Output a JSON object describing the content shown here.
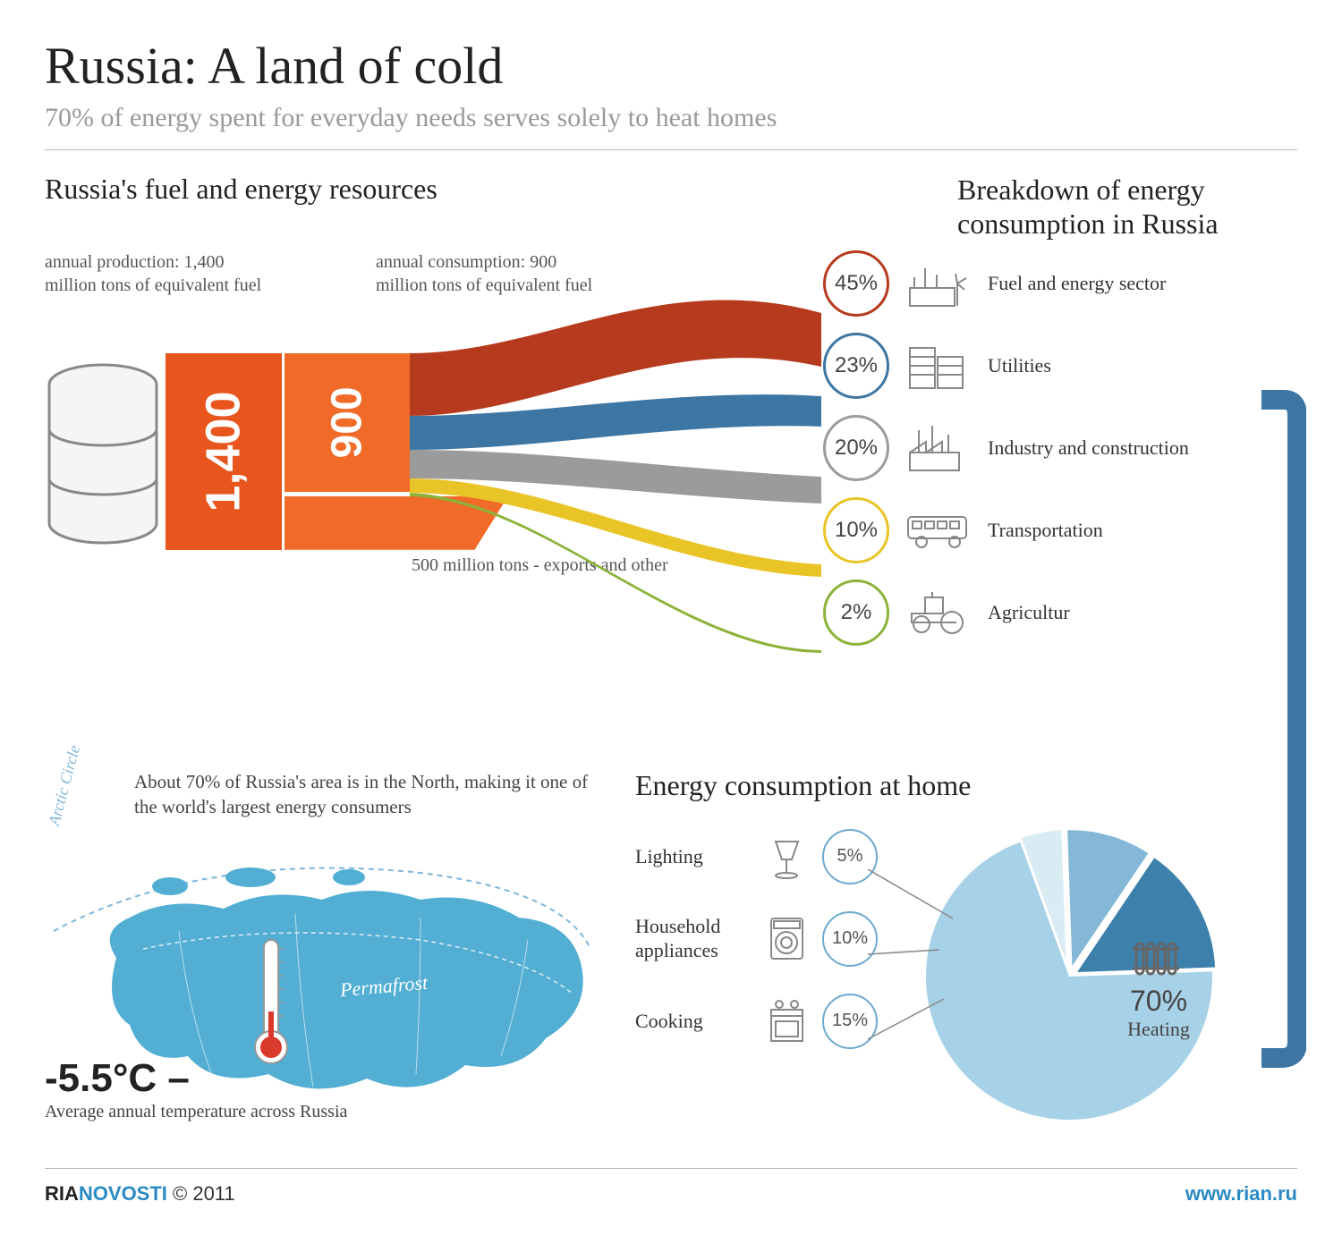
{
  "header": {
    "title": "Russia: A land of cold",
    "subtitle": "70% of energy spent for everyday needs serves solely to heat homes"
  },
  "resources": {
    "heading": "Russia's fuel and energy resources",
    "production_label": "annual production: 1,400 million tons of equivalent fuel",
    "consumption_label": "annual consumption: 900 million tons of equivalent fuel",
    "production_value": "1,400",
    "consumption_value": "900",
    "export_label": "500 million tons - exports and other",
    "block_colors": {
      "production": "#e8551d",
      "consumption": "#f06a28"
    }
  },
  "breakdown": {
    "heading": "Breakdown of energy consumption in Russia",
    "items": [
      {
        "pct": "45%",
        "label": "Fuel and energy sector",
        "color": "#b63a1d",
        "flow_width": 70
      },
      {
        "pct": "23%",
        "label": "Utilities",
        "color": "#3d76a3",
        "flow_width": 38
      },
      {
        "pct": "20%",
        "label": "Industry and construction",
        "color": "#9b9b9b",
        "flow_width": 32
      },
      {
        "pct": "10%",
        "label": "Transportation",
        "color": "#e9c426",
        "flow_width": 16
      },
      {
        "pct": "2%",
        "label": "Agricultur",
        "color": "#8bb33a",
        "flow_width": 4
      }
    ]
  },
  "map": {
    "north_text": "About 70% of Russia's area is in the North, making it one of the world's largest energy consumers",
    "arctic_label": "Arctic Circle",
    "permafrost_label": "Permafrost",
    "temperature_value": "-5.5°C –",
    "temperature_label": "Average annual temperature across Russia",
    "land_color": "#52aed2",
    "arc_color": "#7fb6d8"
  },
  "home": {
    "heading": "Energy consumption at home",
    "items": [
      {
        "label": "Lighting",
        "pct": "5%",
        "value": 5,
        "color": "#d9ecf4"
      },
      {
        "label": "Household appliances",
        "pct": "10%",
        "value": 10,
        "color": "#84b8d6"
      },
      {
        "label": "Cooking",
        "pct": "15%",
        "value": 15,
        "color": "#3d80ab"
      },
      {
        "label": "Heating",
        "pct": "70%",
        "value": 70,
        "color": "#a7d1e6"
      }
    ],
    "circle_border": "#6da9cf",
    "pipe_color": "#3d76a3"
  },
  "footer": {
    "brand_a": "RIA",
    "brand_b": "NOVOSTI",
    "copyright": " © 2011",
    "url": "www.rian.ru"
  }
}
